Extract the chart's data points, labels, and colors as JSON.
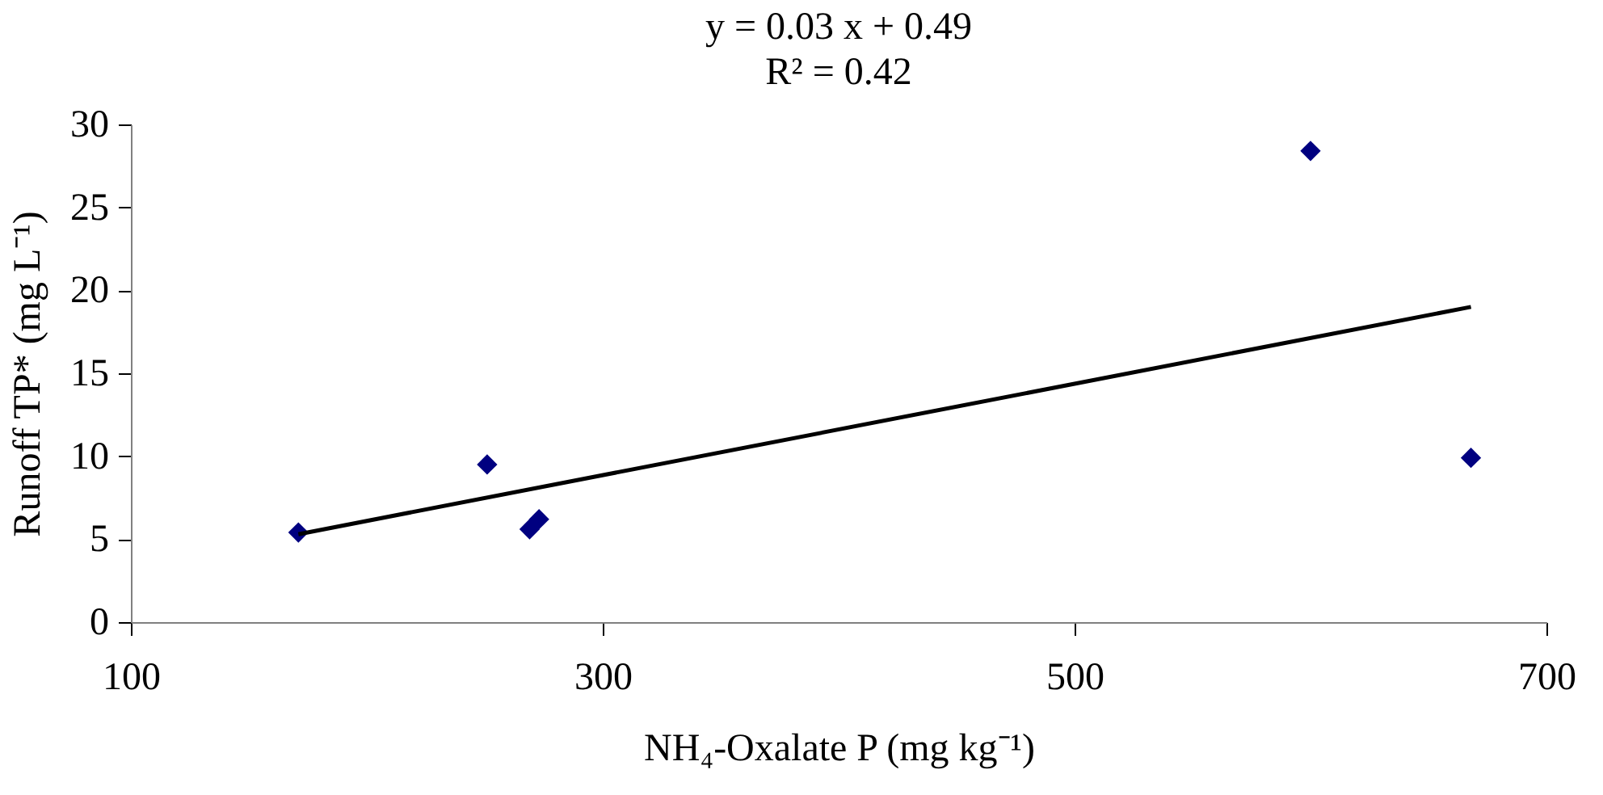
{
  "chart_data": {
    "type": "scatter",
    "title": "y = 0.03 x + 0.49",
    "subtitle": "R² = 0.42",
    "xlabel": "NH₄-Oxalate P (mg kg⁻¹)",
    "ylabel": "Runoff TP* (mg L⁻¹)",
    "x": [
      171,
      251,
      269,
      273,
      600,
      668
    ],
    "series": [
      {
        "color": "#000080",
        "marker": "diamond",
        "values": [
          5.4,
          9.5,
          5.6,
          6.2,
          28.4,
          9.9
        ]
      },
      {
        "type": "line",
        "color": "#000000",
        "line_style": "solid",
        "x": [
          171,
          668
        ],
        "values": [
          5.3,
          19.0
        ]
      }
    ],
    "xlim": [
      100,
      700
    ],
    "xticks": [
      100,
      300,
      500,
      700
    ],
    "ylim": [
      0,
      30
    ],
    "yticks": [
      0,
      5,
      10,
      15,
      20,
      25,
      30
    ],
    "grid": false
  }
}
